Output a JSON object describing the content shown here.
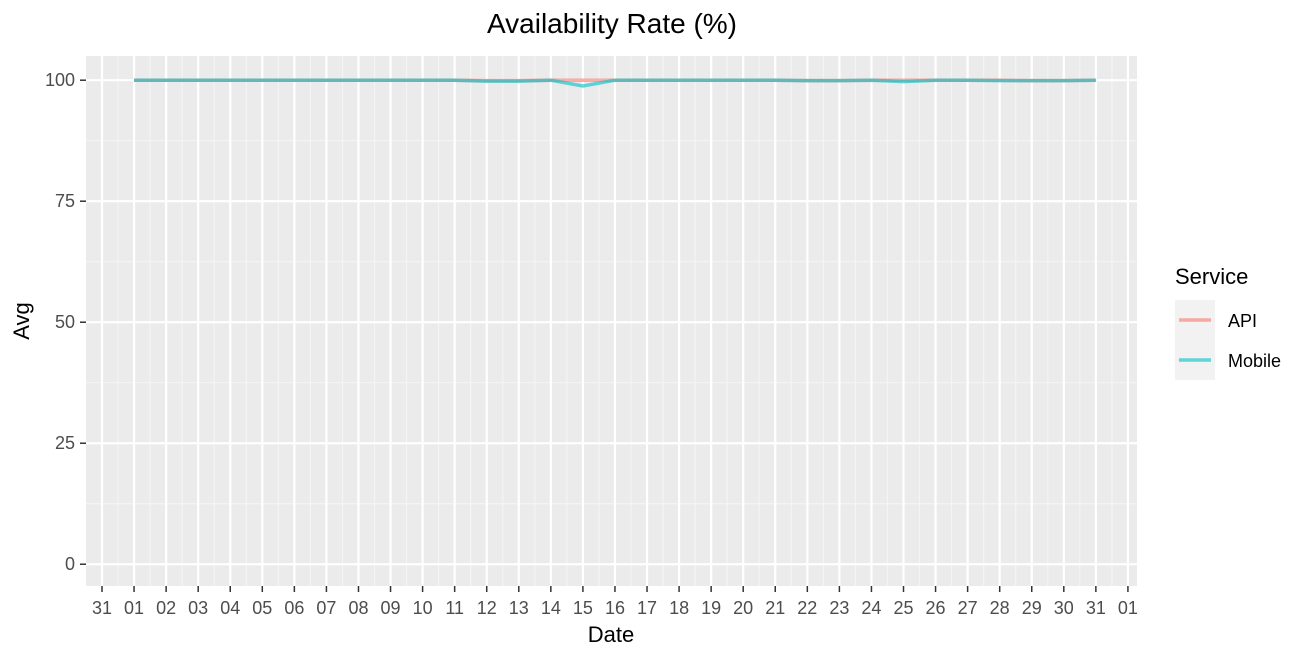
{
  "chart_data": {
    "type": "line",
    "title": "Availability Rate (%)",
    "xlabel": "Date",
    "ylabel": "Avg",
    "x_tick_labels": [
      "31",
      "01",
      "02",
      "03",
      "04",
      "05",
      "06",
      "07",
      "08",
      "09",
      "10",
      "11",
      "12",
      "13",
      "14",
      "15",
      "16",
      "17",
      "18",
      "19",
      "20",
      "21",
      "22",
      "23",
      "24",
      "25",
      "26",
      "27",
      "28",
      "29",
      "30",
      "31",
      "01"
    ],
    "y_ticks": [
      0,
      25,
      50,
      75,
      100
    ],
    "ylim": [
      -4.5,
      105
    ],
    "x": [
      "01",
      "02",
      "03",
      "04",
      "05",
      "06",
      "07",
      "08",
      "09",
      "10",
      "11",
      "12",
      "13",
      "14",
      "15",
      "16",
      "17",
      "18",
      "19",
      "20",
      "21",
      "22",
      "23",
      "24",
      "25",
      "26",
      "27",
      "28",
      "29",
      "30",
      "31"
    ],
    "series": [
      {
        "name": "API",
        "color": "#F8766D",
        "values": [
          100,
          100,
          100,
          100,
          100,
          100,
          100,
          100,
          100,
          100,
          100,
          99.9,
          99.9,
          100,
          100,
          100,
          100,
          100,
          100,
          100,
          100,
          99.9,
          99.9,
          100,
          100,
          100,
          100,
          100,
          99.9,
          99.9,
          100
        ]
      },
      {
        "name": "Mobile",
        "color": "#00BFC4",
        "values": [
          100,
          100,
          100,
          100,
          100,
          100,
          100,
          100,
          100,
          100,
          100,
          99.8,
          99.8,
          100,
          98.8,
          100,
          100,
          100,
          100,
          100,
          100,
          99.9,
          99.9,
          100,
          99.7,
          100,
          100,
          99.9,
          99.9,
          99.9,
          100
        ]
      }
    ],
    "legend": {
      "title": "Service",
      "position": "right"
    },
    "grid": true,
    "panel_background": "#EBEBEB"
  }
}
